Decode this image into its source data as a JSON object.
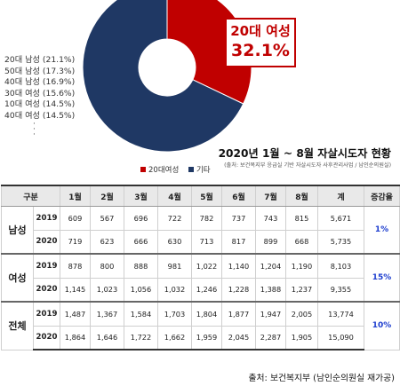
{
  "chart_data": [
    {
      "type": "pie",
      "title": "2020년 1월 ~ 8월 자살시도자 현황",
      "subtitle": "(출처: 보건복지부 응급실 기반 자살시도자 사후관리사업 / 남인순의원실)",
      "slices": [
        {
          "label": "20대여성",
          "value": 32.1,
          "color": "#c00000"
        },
        {
          "label": "기타",
          "value": 67.9,
          "color": "#1f3864"
        }
      ],
      "callout": {
        "line1": "20대 여성",
        "line2": "32.1%"
      },
      "other_breakdown": [
        "20대 남성 (21.1%)",
        "50대 남성 (17.3%)",
        "40대 남성 (16.9%)",
        "30대 여성 (15.6%)",
        "10대 여성 (14.5%)",
        "40대 여성 (14.5%)"
      ],
      "legend_position": "bottom"
    },
    {
      "type": "table",
      "headers": [
        "구분",
        "",
        "1월",
        "2월",
        "3월",
        "4월",
        "5월",
        "6월",
        "7월",
        "8월",
        "계",
        "증감율"
      ],
      "groups": [
        {
          "name": "남성",
          "rate": "1%",
          "rows": [
            {
              "year": "2019",
              "values": [
                "609",
                "567",
                "696",
                "722",
                "782",
                "737",
                "743",
                "815"
              ],
              "total": "5,671"
            },
            {
              "year": "2020",
              "values": [
                "719",
                "623",
                "666",
                "630",
                "713",
                "817",
                "899",
                "668"
              ],
              "total": "5,735"
            }
          ]
        },
        {
          "name": "여성",
          "rate": "15%",
          "rows": [
            {
              "year": "2019",
              "values": [
                "878",
                "800",
                "888",
                "981",
                "1,022",
                "1,140",
                "1,204",
                "1,190"
              ],
              "total": "8,103"
            },
            {
              "year": "2020",
              "values": [
                "1,145",
                "1,023",
                "1,056",
                "1,032",
                "1,246",
                "1,228",
                "1,388",
                "1,237"
              ],
              "total": "9,355"
            }
          ]
        },
        {
          "name": "전체",
          "rate": "10%",
          "rows": [
            {
              "year": "2019",
              "values": [
                "1,487",
                "1,367",
                "1,584",
                "1,703",
                "1,804",
                "1,877",
                "1,947",
                "2,005"
              ],
              "total": "13,774"
            },
            {
              "year": "2020",
              "values": [
                "1,864",
                "1,646",
                "1,722",
                "1,662",
                "1,959",
                "2,045",
                "2,287",
                "1,905"
              ],
              "total": "15,090"
            }
          ]
        }
      ]
    }
  ],
  "source": "출처: 보건복지부 (남인순의원실 재가공)"
}
